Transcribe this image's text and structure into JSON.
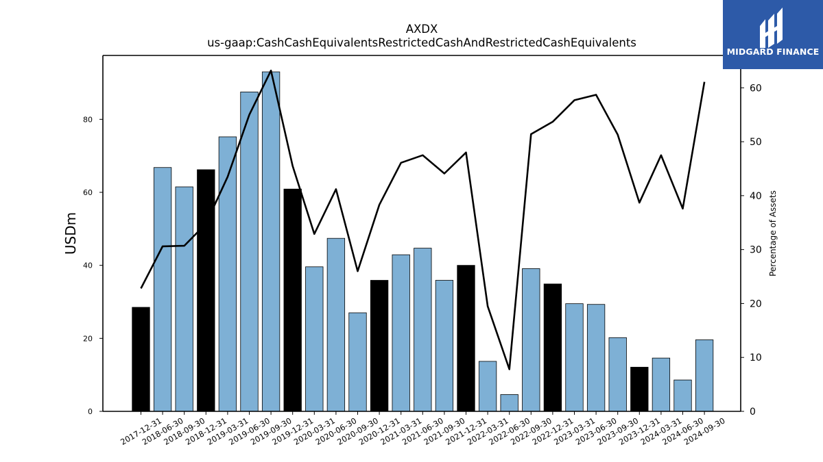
{
  "title": "AXDX",
  "subtitle": "us-gaap:CashCashEquivalentsRestrictedCashAndRestrictedCashEquivalents",
  "logo": {
    "text": "MIDGARD FINANCE",
    "bg_color": "#2d5aa8"
  },
  "chart_data": {
    "type": "bar",
    "title": "AXDX",
    "subtitle": "us-gaap:CashCashEquivalentsRestrictedCashAndRestrictedCashEquivalents",
    "ylabel": "USDm",
    "y2label": "Percentage of Assets",
    "ylim": [
      0,
      97.5
    ],
    "y2lim": [
      0,
      66
    ],
    "yticks": [
      0,
      20,
      40,
      60,
      80
    ],
    "y2ticks": [
      0,
      10,
      20,
      30,
      40,
      50,
      60
    ],
    "categories": [
      "2017-12-31",
      "2018-06-30",
      "2018-09-30",
      "2018-12-31",
      "2019-03-31",
      "2019-06-30",
      "2019-09-30",
      "2019-12-31",
      "2020-03-31",
      "2020-06-30",
      "2020-09-30",
      "2020-12-31",
      "2021-03-31",
      "2021-06-30",
      "2021-09-30",
      "2021-12-31",
      "2022-03-31",
      "2022-06-30",
      "2022-09-30",
      "2022-12-31",
      "2023-03-31",
      "2023-06-30",
      "2023-09-30",
      "2023-12-31",
      "2024-03-31",
      "2024-06-30",
      "2024-09-30"
    ],
    "series": [
      {
        "kind": "bar",
        "axis": "left",
        "values": [
          28.5,
          66.8,
          61.5,
          66.2,
          75.2,
          87.5,
          93.0,
          60.9,
          39.6,
          47.4,
          27.0,
          35.9,
          42.9,
          44.7,
          35.9,
          40.0,
          13.7,
          4.6,
          39.1,
          34.9,
          29.5,
          29.3,
          20.2,
          12.1,
          14.6,
          8.6,
          19.6
        ],
        "year_end": [
          true,
          false,
          false,
          true,
          false,
          false,
          false,
          true,
          false,
          false,
          false,
          true,
          false,
          false,
          false,
          true,
          false,
          false,
          false,
          true,
          false,
          false,
          false,
          true,
          false,
          false,
          false
        ],
        "color": "#7eb0d5",
        "year_end_color": "#000000"
      },
      {
        "kind": "line",
        "axis": "right",
        "values": [
          22.8,
          30.6,
          30.7,
          34.8,
          43.5,
          55.0,
          63.2,
          45.5,
          32.9,
          41.2,
          26.0,
          38.3,
          46.1,
          47.5,
          44.1,
          48.0,
          19.5,
          7.8,
          51.4,
          53.7,
          57.7,
          58.7,
          51.3,
          38.7,
          47.5,
          37.6,
          61.1
        ],
        "color": "#000000"
      }
    ],
    "grid": false
  }
}
